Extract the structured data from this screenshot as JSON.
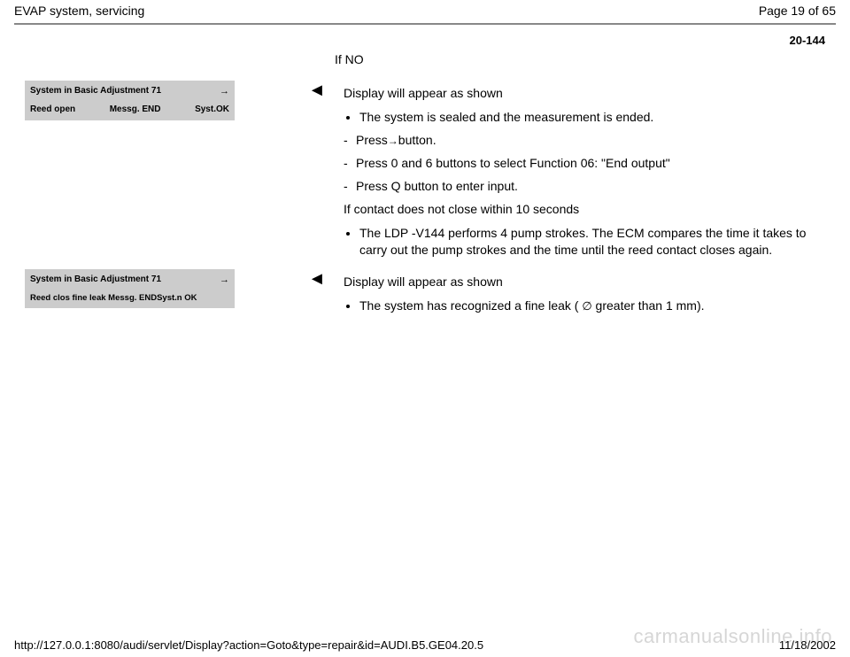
{
  "header": {
    "title": "EVAP system, servicing",
    "page_label": "Page 19 of 65"
  },
  "page_code": "20-144",
  "if_no": "If NO",
  "block1": {
    "display": {
      "line1_left": "System in Basic Adjustment 71",
      "line1_right": "→",
      "line2_a": "Reed open",
      "line2_b": "Messg. END",
      "line2_c": "Syst.OK"
    },
    "pointer": "◄",
    "heading": "Display will appear as shown",
    "bullet1": "The system is sealed and the measurement is ended.",
    "dash1_pre": "Press",
    "dash1_arrow": "→",
    "dash1_post": "button.",
    "dash2": "Press 0 and 6 buttons to select Function 06: \"End output\"",
    "dash3": "Press Q button to enter input.",
    "contact_line": "If contact does not close within 10 seconds",
    "bullet2": "The LDP -V144 performs 4 pump strokes. The ECM compares the time it takes to carry out the pump strokes and the time until the reed contact closes again."
  },
  "block2": {
    "display": {
      "line1_left": "System in Basic Adjustment 71",
      "line1_right": "→",
      "line2": "Reed clos fine leak Messg. ENDSyst.n OK"
    },
    "pointer": "◄",
    "heading": "Display will appear as shown",
    "bullet1_pre": "The system has recognized a fine leak ( ",
    "bullet1_sym": "∅",
    "bullet1_post": " greater than 1 mm)."
  },
  "footer": {
    "url": "http://127.0.0.1:8080/audi/servlet/Display?action=Goto&type=repair&id=AUDI.B5.GE04.20.5",
    "date": "11/18/2002"
  },
  "watermark": "carmanualsonline.info"
}
